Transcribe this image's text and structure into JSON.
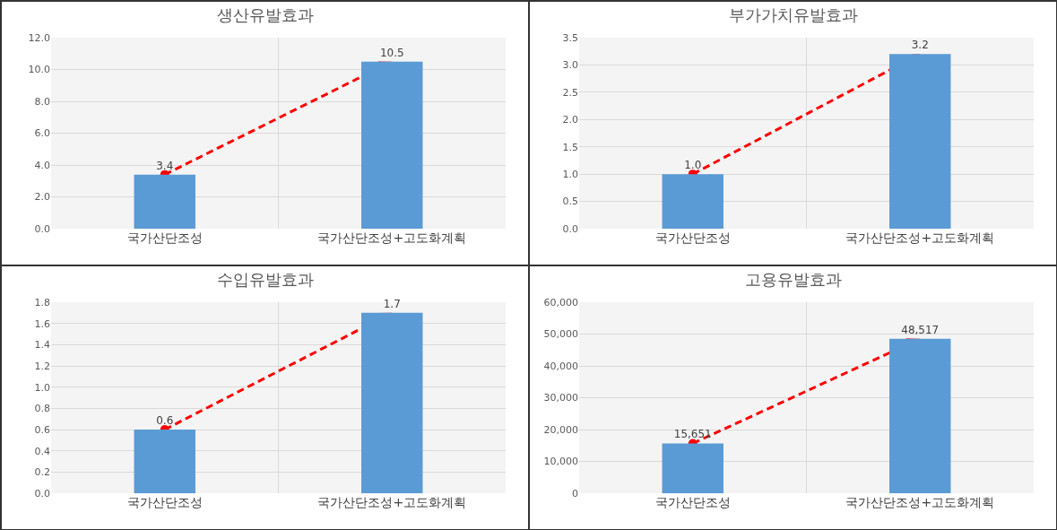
{
  "chart_data": [
    {
      "type": "bar",
      "title": "생산유발효과",
      "categories": [
        "국가산단조성",
        "국가산단조성+고도화계획"
      ],
      "values": [
        3.4,
        10.5
      ],
      "value_labels": [
        "3.4",
        "10.5"
      ],
      "color": "#5b9bd5",
      "ylim": [
        0,
        12
      ],
      "yticks": [
        {
          "value": 0,
          "label": "0.0"
        },
        {
          "value": 2,
          "label": "2.0"
        },
        {
          "value": 4,
          "label": "4.0"
        },
        {
          "value": 6,
          "label": "6.0"
        },
        {
          "value": 8,
          "label": "8.0"
        },
        {
          "value": 10,
          "label": "10.0"
        },
        {
          "value": 12,
          "label": "12.0"
        }
      ],
      "grid": true
    },
    {
      "type": "bar",
      "title": "부가가치유발효과",
      "categories": [
        "국가산단조성",
        "국가산단조성+고도화계획"
      ],
      "values": [
        1.0,
        3.2
      ],
      "value_labels": [
        "1.0",
        "3.2"
      ],
      "color": "#5b9bd5",
      "ylim": [
        0,
        3.5
      ],
      "yticks": [
        {
          "value": 0,
          "label": "0.0"
        },
        {
          "value": 0.5,
          "label": "0.5"
        },
        {
          "value": 1,
          "label": "1.0"
        },
        {
          "value": 1.5,
          "label": "1.5"
        },
        {
          "value": 2,
          "label": "2.0"
        },
        {
          "value": 2.5,
          "label": "2.5"
        },
        {
          "value": 3,
          "label": "3.0"
        },
        {
          "value": 3.5,
          "label": "3.5"
        }
      ],
      "grid": true
    },
    {
      "type": "bar",
      "title": "수입유발효과",
      "categories": [
        "국가산단조성",
        "국가산단조성+고도화계획"
      ],
      "values": [
        0.6,
        1.7
      ],
      "value_labels": [
        "0.6",
        "1.7"
      ],
      "color": "#5b9bd5",
      "ylim": [
        0,
        1.8
      ],
      "yticks": [
        {
          "value": 0,
          "label": "0.0"
        },
        {
          "value": 0.2,
          "label": "0.2"
        },
        {
          "value": 0.4,
          "label": "0.4"
        },
        {
          "value": 0.6,
          "label": "0.6"
        },
        {
          "value": 0.8,
          "label": "0.8"
        },
        {
          "value": 1,
          "label": "1.0"
        },
        {
          "value": 1.2,
          "label": "1.2"
        },
        {
          "value": 1.4,
          "label": "1.4"
        },
        {
          "value": 1.6,
          "label": "1.6"
        },
        {
          "value": 1.8,
          "label": "1.8"
        }
      ],
      "grid": true
    },
    {
      "type": "bar",
      "title": "고용유발효과",
      "categories": [
        "국가산단조성",
        "국가산단조성+고도화계획"
      ],
      "values": [
        15651,
        48517
      ],
      "value_labels": [
        "15,651",
        "48,517"
      ],
      "color": "#5b9bd5",
      "ylim": [
        0,
        60000
      ],
      "yticks": [
        0,
        {
          "value": 10000,
          "label": "10,000"
        },
        {
          "value": 20000,
          "label": "20,000"
        },
        {
          "value": 30000,
          "label": "30,000"
        },
        {
          "value": 40000,
          "label": "40,000"
        },
        {
          "value": 50000,
          "label": "50,000"
        },
        {
          "value": 60000,
          "label": "60,000"
        }
      ],
      "grid": true
    }
  ]
}
